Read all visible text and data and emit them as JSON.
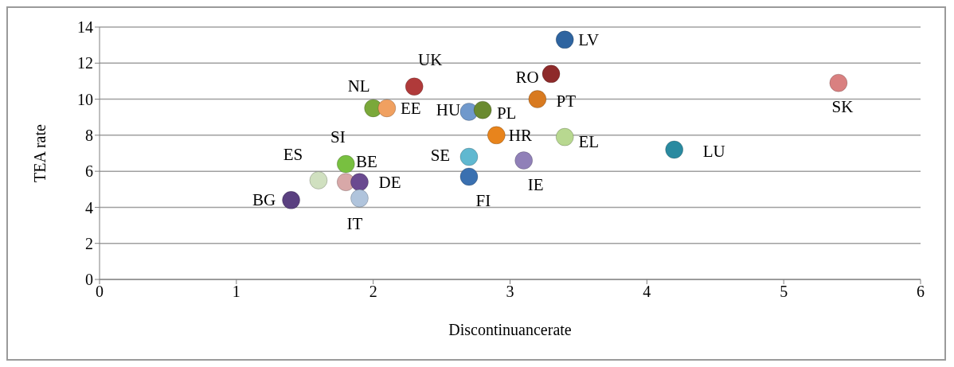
{
  "chart_data": {
    "type": "scatter",
    "xlabel": "Discontinuancerate",
    "ylabel": "TEA rate",
    "xlim": [
      0,
      6
    ],
    "xticks": [
      0,
      1,
      2,
      3,
      4,
      5,
      6
    ],
    "ylim": [
      0,
      14
    ],
    "yticks": [
      0,
      2,
      4,
      6,
      8,
      10,
      12,
      14
    ],
    "grid": "y",
    "legend": false,
    "marker": "circle",
    "series": [
      {
        "name": "LV",
        "color": "#2e64a0",
        "x": [
          3.4
        ],
        "values": [
          13.3
        ]
      },
      {
        "name": "UK",
        "color": "#b03a3a",
        "x": [
          2.3
        ],
        "values": [
          10.7
        ]
      },
      {
        "name": "RO",
        "color": "#8e2a2a",
        "x": [
          3.3
        ],
        "values": [
          11.4
        ]
      },
      {
        "name": "SK",
        "color": "#d98080",
        "x": [
          5.4
        ],
        "values": [
          10.9
        ]
      },
      {
        "name": "NL",
        "color": "#7aa83a",
        "x": [
          2.0
        ],
        "values": [
          9.5
        ]
      },
      {
        "name": "EE",
        "color": "#f0a060",
        "x": [
          2.1
        ],
        "values": [
          9.5
        ]
      },
      {
        "name": "HU",
        "color": "#7099cc",
        "x": [
          2.7
        ],
        "values": [
          9.3
        ]
      },
      {
        "name": "PL",
        "color": "#6a8a30",
        "x": [
          2.8
        ],
        "values": [
          9.4
        ]
      },
      {
        "name": "PT",
        "color": "#d87a20",
        "x": [
          3.2
        ],
        "values": [
          10.0
        ]
      },
      {
        "name": "HR",
        "color": "#e8841c",
        "x": [
          2.9
        ],
        "values": [
          8.0
        ]
      },
      {
        "name": "EL",
        "color": "#b8d890",
        "x": [
          3.4
        ],
        "values": [
          7.9
        ]
      },
      {
        "name": "LU",
        "color": "#2a8aa0",
        "x": [
          4.2
        ],
        "values": [
          7.2
        ]
      },
      {
        "name": "SE",
        "color": "#60b8d0",
        "x": [
          2.7
        ],
        "values": [
          6.8
        ]
      },
      {
        "name": "IE",
        "color": "#9080b8",
        "x": [
          3.1
        ],
        "values": [
          6.6
        ]
      },
      {
        "name": "FI",
        "color": "#3a70b0",
        "x": [
          2.7
        ],
        "values": [
          5.7
        ]
      },
      {
        "name": "SI",
        "color": "#78c040",
        "x": [
          1.8
        ],
        "values": [
          6.4
        ]
      },
      {
        "name": "ES",
        "color": "#d0e0c0",
        "x": [
          1.6
        ],
        "values": [
          5.5
        ]
      },
      {
        "name": "BE",
        "color": "#d8a8a8",
        "x": [
          1.8
        ],
        "values": [
          5.4
        ]
      },
      {
        "name": "DE",
        "color": "#6a4a90",
        "x": [
          1.9
        ],
        "values": [
          5.4
        ]
      },
      {
        "name": "IT",
        "color": "#b0c4dc",
        "x": [
          1.9
        ],
        "values": [
          4.5
        ]
      },
      {
        "name": "BG",
        "color": "#5a4080",
        "x": [
          1.4
        ],
        "values": [
          4.4
        ]
      }
    ]
  }
}
